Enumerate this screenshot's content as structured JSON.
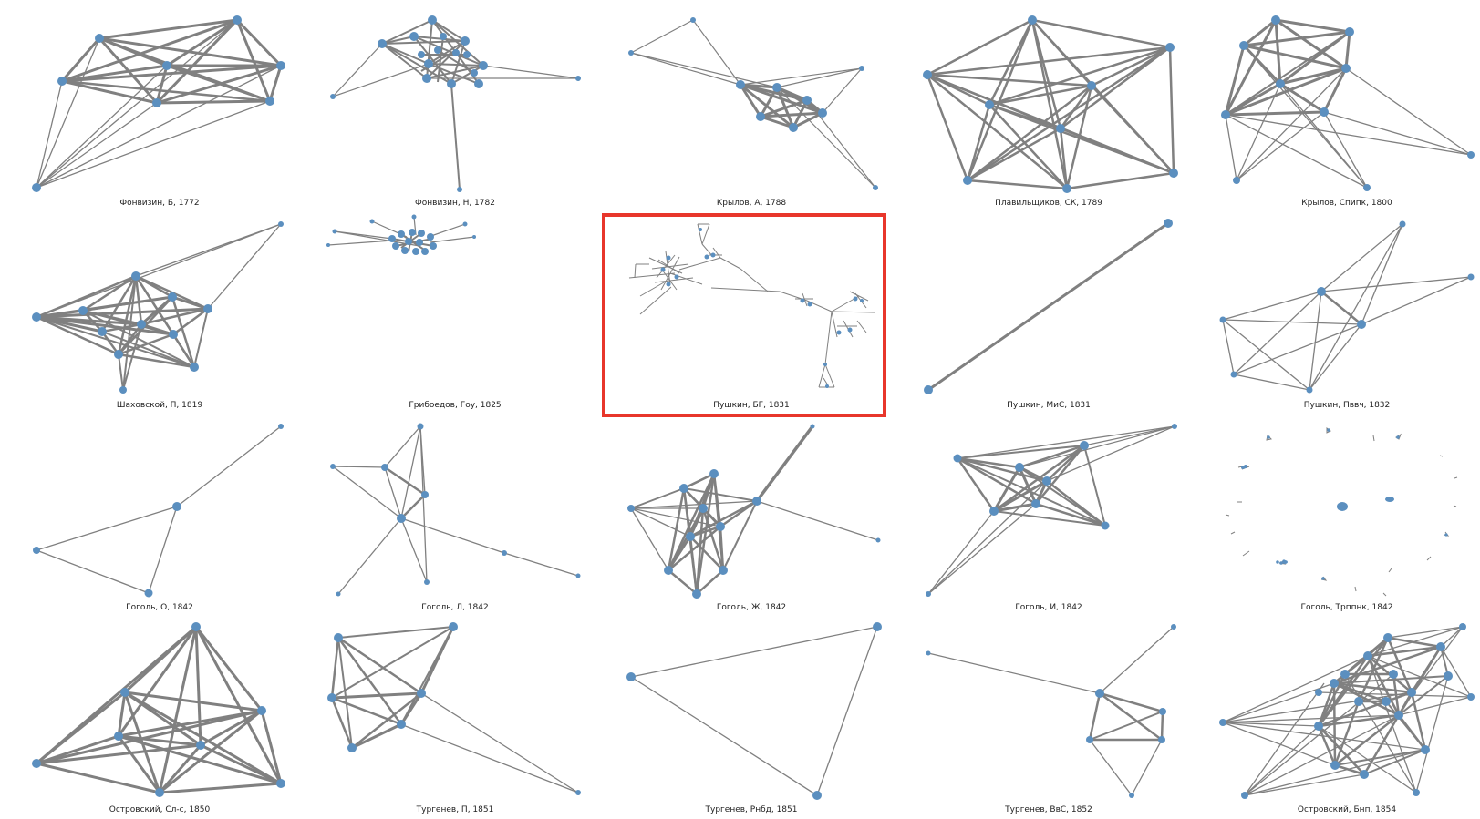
{
  "colors": {
    "edge": "#808080",
    "node": "#5b8fbf",
    "highlight": "#e8362b",
    "background": "#ffffff"
  },
  "panels": [
    {
      "caption": "Фонвизин, Б, 1772"
    },
    {
      "caption": "Фонвизин, Н, 1782"
    },
    {
      "caption": "Крылов, А, 1788"
    },
    {
      "caption": "Плавильщиков, СК, 1789"
    },
    {
      "caption": "Крылов, Спипк, 1800"
    },
    {
      "caption": "Шаховской, П, 1819"
    },
    {
      "caption": "Грибоедов, Гоу, 1825"
    },
    {
      "caption": "Пушкин, БГ, 1831",
      "highlighted": true
    },
    {
      "caption": "Пушкин, МиС, 1831"
    },
    {
      "caption": "Пушкин, Пввч, 1832"
    },
    {
      "caption": "Гоголь, О, 1842"
    },
    {
      "caption": "Гоголь, Л, 1842"
    },
    {
      "caption": "Гоголь, Ж, 1842"
    },
    {
      "caption": "Гоголь, И, 1842"
    },
    {
      "caption": "Гоголь, Трппнк, 1842"
    },
    {
      "caption": "Островский, Сл-с, 1850"
    },
    {
      "caption": "Тургенев, П, 1851"
    },
    {
      "caption": "Тургенев, Рнбд, 1851"
    },
    {
      "caption": "Тургенев, ВвС, 1852"
    },
    {
      "caption": "Островский, Бнп, 1854"
    }
  ]
}
